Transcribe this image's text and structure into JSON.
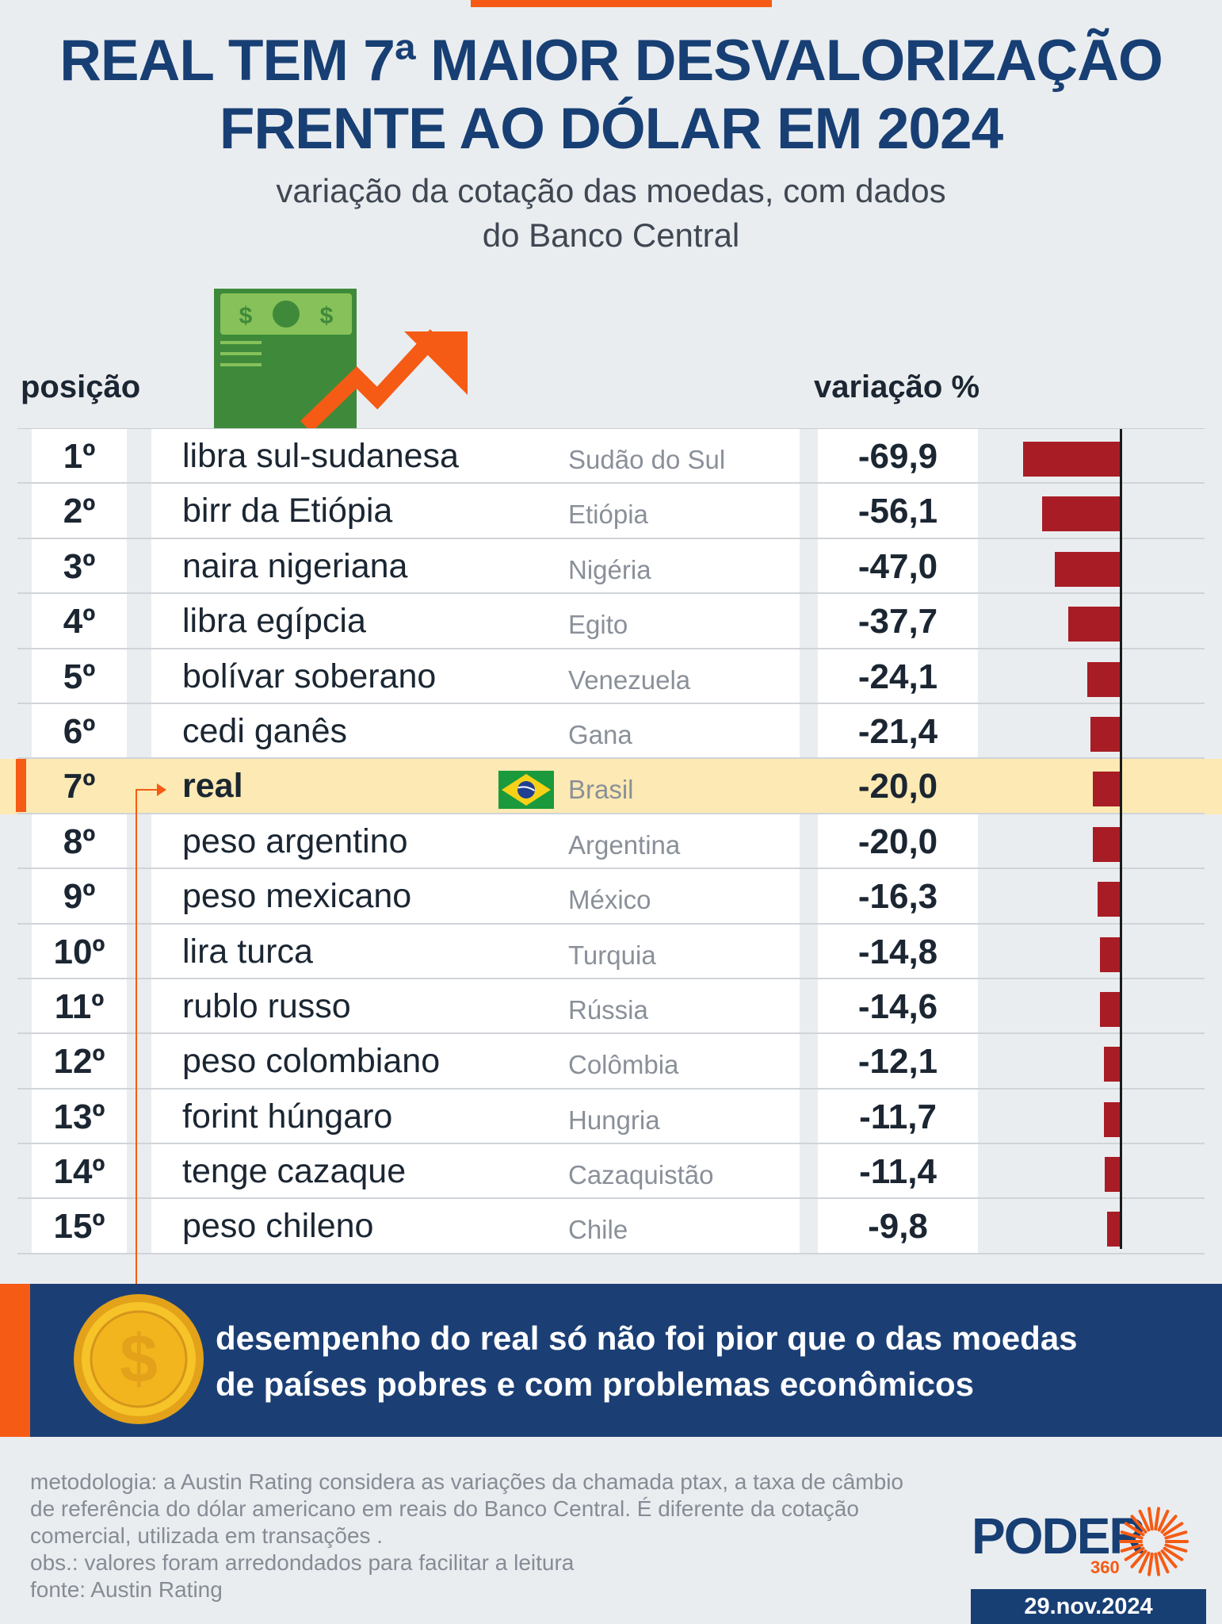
{
  "title": {
    "line1": "REAL TEM 7ª MAIOR DESVALORIZAÇÃO",
    "line2": "FRENTE AO DÓLAR EM 2024"
  },
  "subtitle": {
    "line1": "variação da cotação das moedas, com dados",
    "line2": "do Banco Central"
  },
  "columns": {
    "position": "posição",
    "variation": "variação %"
  },
  "icons": {
    "banknote_symbol": "$",
    "coin_symbol": "$"
  },
  "chart_data": {
    "type": "bar",
    "orientation": "horizontal",
    "title": "REAL TEM 7ª MAIOR DESVALORIZAÇÃO FRENTE AO DÓLAR EM 2024",
    "subtitle": "variação da cotação das moedas, com dados do Banco Central",
    "value_label": "variação %",
    "xlim": [
      -70,
      0
    ],
    "highlight": "real",
    "bar_color": "#a81d25",
    "highlight_color": "#fde9b3",
    "accent_color": "#f55b14",
    "rows": [
      {
        "position": "1º",
        "currency": "libra sul-sudanesa",
        "country": "Sudão do Sul",
        "value": -69.9,
        "label": "-69,9"
      },
      {
        "position": "2º",
        "currency": "birr da Etiópia",
        "country": "Etiópia",
        "value": -56.1,
        "label": "-56,1"
      },
      {
        "position": "3º",
        "currency": "naira nigeriana",
        "country": "Nigéria",
        "value": -47.0,
        "label": "-47,0"
      },
      {
        "position": "4º",
        "currency": "libra egípcia",
        "country": "Egito",
        "value": -37.7,
        "label": "-37,7"
      },
      {
        "position": "5º",
        "currency": "bolívar soberano",
        "country": "Venezuela",
        "value": -24.1,
        "label": "-24,1"
      },
      {
        "position": "6º",
        "currency": "cedi ganês",
        "country": "Gana",
        "value": -21.4,
        "label": "-21,4"
      },
      {
        "position": "7º",
        "currency": "real",
        "country": "Brasil",
        "value": -20.0,
        "label": "-20,0",
        "highlight": true,
        "flag": "brazil"
      },
      {
        "position": "8º",
        "currency": "peso argentino",
        "country": "Argentina",
        "value": -20.0,
        "label": "-20,0"
      },
      {
        "position": "9º",
        "currency": "peso mexicano",
        "country": "México",
        "value": -16.3,
        "label": "-16,3"
      },
      {
        "position": "10º",
        "currency": "lira turca",
        "country": "Turquia",
        "value": -14.8,
        "label": "-14,8"
      },
      {
        "position": "11º",
        "currency": "rublo russo",
        "country": "Rússia",
        "value": -14.6,
        "label": "-14,6"
      },
      {
        "position": "12º",
        "currency": "peso colombiano",
        "country": "Colômbia",
        "value": -12.1,
        "label": "-12,1"
      },
      {
        "position": "13º",
        "currency": "forint húngaro",
        "country": "Hungria",
        "value": -11.7,
        "label": "-11,7"
      },
      {
        "position": "14º",
        "currency": "tenge cazaque",
        "country": "Cazaquistão",
        "value": -11.4,
        "label": "-11,4"
      },
      {
        "position": "15º",
        "currency": "peso chileno",
        "country": "Chile",
        "value": -9.8,
        "label": "-9,8"
      }
    ]
  },
  "callout": {
    "line1": "desempenho do real só não foi pior que o das moedas",
    "line2": "de países pobres e com problemas econômicos"
  },
  "footer": {
    "line1": "metodologia: a Austin Rating considera as variações da chamada ptax, a taxa de câmbio",
    "line2": "de referência do dólar americano em reais do Banco Central. É diferente da cotação",
    "line3": "comercial, utilizada em transações .",
    "line4": "obs.: valores foram arredondados para facilitar a leitura",
    "line5": "fonte: Austin Rating"
  },
  "logo": {
    "word": "PODER",
    "sub": "360"
  },
  "date": "29.nov.2024"
}
